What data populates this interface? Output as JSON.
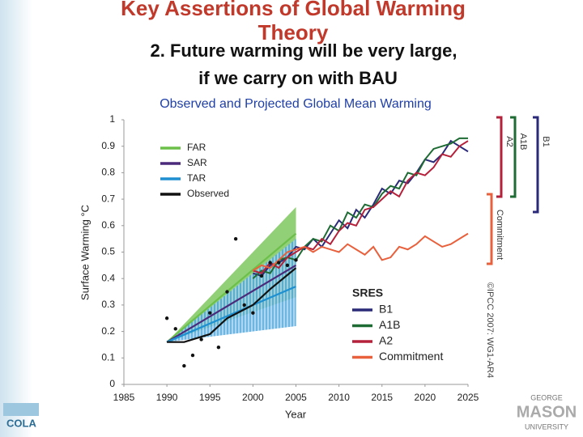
{
  "slide": {
    "heading": "Key Assertions of Global Warming",
    "heading_2": "Theory",
    "subheading": "2. Future warming will be very large,",
    "subheading_2": "if we carry on with BAU",
    "logo_left": "COLA",
    "logo_right_1": "GEORGE",
    "logo_right_2": "MASON",
    "logo_right_3": "UNIVERSITY"
  },
  "chart_data": {
    "type": "line",
    "title": "Observed and Projected Global Mean Warming",
    "x_label": "Year",
    "y_label": "Surface Warming °C",
    "credit": "©IPCC 2007: WG1-AR4",
    "sres_title": "SRES",
    "xlim": [
      1985,
      2025
    ],
    "xticks": [
      1985,
      1990,
      1995,
      2000,
      2005,
      2010,
      2015,
      2020,
      2025
    ],
    "ylim": [
      0,
      1
    ],
    "yticks": [
      0,
      0.1,
      0.2,
      0.3,
      0.4,
      0.5,
      0.6,
      0.7,
      0.8,
      0.9,
      1
    ],
    "series": [
      {
        "name": "FAR",
        "color": "#6cc04a",
        "group": "past",
        "x": [
          1990,
          2005
        ],
        "values": [
          0.16,
          0.57
        ],
        "band_x": 2005,
        "band_low": 0.33,
        "band_high": 0.67
      },
      {
        "name": "SAR",
        "color": "#4b2a7b",
        "group": "past",
        "x": [
          1990,
          2005
        ],
        "values": [
          0.16,
          0.45
        ]
      },
      {
        "name": "TAR",
        "color": "#1e8fd0",
        "group": "past",
        "x": [
          1990,
          2005
        ],
        "values": [
          0.16,
          0.37
        ],
        "band_x": 2005,
        "band_low": 0.22,
        "band_high": 0.55
      },
      {
        "name": "Observed",
        "color": "#111111",
        "group": "past",
        "x": [
          1990,
          1992,
          1995,
          1997,
          2000,
          2002,
          2005
        ],
        "values": [
          0.16,
          0.16,
          0.19,
          0.25,
          0.3,
          0.36,
          0.44
        ],
        "points_x": [
          1990,
          1991,
          1992,
          1993,
          1994,
          1995,
          1996,
          1997,
          1998,
          1999,
          2000,
          2001,
          2002,
          2003,
          2004,
          2005
        ],
        "points_y": [
          0.25,
          0.21,
          0.07,
          0.11,
          0.17,
          0.27,
          0.14,
          0.35,
          0.55,
          0.3,
          0.27,
          0.41,
          0.46,
          0.46,
          0.45,
          0.47
        ]
      },
      {
        "name": "B1",
        "color": "#2a2a78",
        "group": "sres",
        "x": [
          2000,
          2001,
          2002,
          2003,
          2004,
          2005,
          2006,
          2007,
          2008,
          2009,
          2010,
          2011,
          2012,
          2013,
          2014,
          2015,
          2016,
          2017,
          2018,
          2019,
          2020,
          2021,
          2022,
          2023,
          2024,
          2025
        ],
        "values": [
          0.42,
          0.41,
          0.45,
          0.46,
          0.48,
          0.52,
          0.51,
          0.55,
          0.52,
          0.57,
          0.62,
          0.59,
          0.66,
          0.63,
          0.68,
          0.74,
          0.72,
          0.77,
          0.76,
          0.8,
          0.85,
          0.84,
          0.87,
          0.92,
          0.9,
          0.88
        ]
      },
      {
        "name": "A1B",
        "color": "#1e6b34",
        "group": "sres",
        "x": [
          2000,
          2001,
          2002,
          2003,
          2004,
          2005,
          2006,
          2007,
          2008,
          2009,
          2010,
          2011,
          2012,
          2013,
          2014,
          2015,
          2016,
          2017,
          2018,
          2019,
          2020,
          2021,
          2022,
          2023,
          2024,
          2025
        ],
        "values": [
          0.4,
          0.43,
          0.42,
          0.47,
          0.48,
          0.47,
          0.52,
          0.55,
          0.54,
          0.6,
          0.58,
          0.65,
          0.63,
          0.68,
          0.67,
          0.72,
          0.75,
          0.74,
          0.8,
          0.79,
          0.85,
          0.89,
          0.9,
          0.91,
          0.93,
          0.93
        ]
      },
      {
        "name": "A2",
        "color": "#b5203a",
        "group": "sres",
        "x": [
          2000,
          2001,
          2002,
          2003,
          2004,
          2005,
          2006,
          2007,
          2008,
          2009,
          2010,
          2011,
          2012,
          2013,
          2014,
          2015,
          2016,
          2017,
          2018,
          2019,
          2020,
          2021,
          2022,
          2023,
          2024,
          2025
        ],
        "values": [
          0.43,
          0.42,
          0.46,
          0.44,
          0.48,
          0.5,
          0.52,
          0.51,
          0.55,
          0.53,
          0.58,
          0.61,
          0.6,
          0.66,
          0.67,
          0.7,
          0.73,
          0.71,
          0.77,
          0.8,
          0.79,
          0.82,
          0.87,
          0.86,
          0.9,
          0.92
        ]
      },
      {
        "name": "Commitment",
        "color": "#e8603c",
        "group": "sres",
        "x": [
          2000,
          2001,
          2002,
          2003,
          2004,
          2005,
          2006,
          2007,
          2008,
          2009,
          2010,
          2011,
          2012,
          2013,
          2014,
          2015,
          2016,
          2017,
          2018,
          2019,
          2020,
          2021,
          2022,
          2023,
          2024,
          2025
        ],
        "values": [
          0.43,
          0.45,
          0.44,
          0.47,
          0.5,
          0.51,
          0.52,
          0.5,
          0.52,
          0.51,
          0.5,
          0.53,
          0.51,
          0.49,
          0.52,
          0.47,
          0.48,
          0.52,
          0.51,
          0.53,
          0.56,
          0.54,
          0.52,
          0.53,
          0.55,
          0.57
        ]
      }
    ]
  }
}
